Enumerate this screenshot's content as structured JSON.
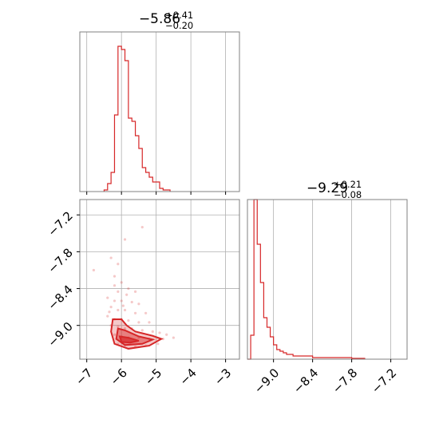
{
  "colors": {
    "series": "#d62728",
    "grid": "#b0b0b0",
    "axes": "#808080"
  },
  "chart_data": [
    {
      "type": "histogram",
      "panel": "top-left",
      "title_main": "−5.86",
      "title_sup": "+0.41",
      "title_sub": "−0.20",
      "xlim": [
        -7.2,
        -2.6
      ],
      "ylim": [
        0,
        1.0
      ],
      "xticks": [
        -7,
        -6,
        -5,
        -4,
        -3
      ],
      "xtick_labels": [],
      "yticks": [],
      "grid": true,
      "bin_edges": [
        -6.5,
        -6.4,
        -6.3,
        -6.2,
        -6.1,
        -6.0,
        -5.9,
        -5.8,
        -5.7,
        -5.6,
        -5.5,
        -5.4,
        -5.3,
        -5.2,
        -5.1,
        -5.0,
        -4.9,
        -4.8,
        -4.7,
        -4.6
      ],
      "counts": [
        0.01,
        0.05,
        0.12,
        0.48,
        0.91,
        0.89,
        0.82,
        0.46,
        0.44,
        0.35,
        0.27,
        0.15,
        0.12,
        0.09,
        0.06,
        0.06,
        0.02,
        0.01,
        0.01
      ]
    },
    {
      "type": "histogram",
      "panel": "bottom-right",
      "title_main": "−9.29",
      "title_sup": "+0.21",
      "title_sub": "−0.08",
      "xlim": [
        -9.4,
        -6.95
      ],
      "ylim": [
        0,
        1.0
      ],
      "xticks": [
        -9.0,
        -8.4,
        -7.8,
        -7.2
      ],
      "xtick_labels": [
        "−9.0",
        "−8.4",
        "−7.8",
        "−7.2"
      ],
      "yticks": [],
      "grid": true,
      "bin_edges": [
        -9.4,
        -9.35,
        -9.3,
        -9.25,
        -9.2,
        -9.15,
        -9.1,
        -9.05,
        -9.0,
        -8.95,
        -8.9,
        -8.85,
        -8.8,
        -8.75,
        -8.7,
        -8.6,
        -8.4,
        -8.2,
        -8.0,
        -7.8,
        -7.6
      ],
      "counts": [
        0.0,
        0.15,
        1.0,
        0.72,
        0.48,
        0.26,
        0.2,
        0.14,
        0.09,
        0.06,
        0.05,
        0.04,
        0.03,
        0.03,
        0.02,
        0.02,
        0.01,
        0.01,
        0.01,
        0.005
      ]
    },
    {
      "type": "scatter",
      "panel": "bottom-left",
      "xlim": [
        -7.2,
        -2.6
      ],
      "ylim": [
        -9.55,
        -6.95
      ],
      "xticks": [
        -7,
        -6,
        -5,
        -4,
        -3
      ],
      "xtick_labels": [
        "−7",
        "−6",
        "−5",
        "−4",
        "−3"
      ],
      "yticks": [
        -7.2,
        -7.8,
        -8.4,
        -9.0
      ],
      "ytick_labels": [
        "−7.2",
        "−7.8",
        "−8.4",
        "−9.0"
      ],
      "grid": true,
      "points": [
        [
          -6.3,
          -7.9
        ],
        [
          -6.1,
          -8.0
        ],
        [
          -5.9,
          -7.6
        ],
        [
          -5.4,
          -7.4
        ],
        [
          -6.8,
          -8.1
        ],
        [
          -6.2,
          -8.2
        ],
        [
          -6.0,
          -8.3
        ],
        [
          -6.1,
          -8.45
        ],
        [
          -5.8,
          -8.4
        ],
        [
          -5.6,
          -8.45
        ],
        [
          -6.4,
          -8.55
        ],
        [
          -6.2,
          -8.6
        ],
        [
          -6.0,
          -8.6
        ],
        [
          -5.7,
          -8.62
        ],
        [
          -5.5,
          -8.65
        ],
        [
          -6.3,
          -8.7
        ],
        [
          -6.1,
          -8.75
        ],
        [
          -5.9,
          -8.75
        ],
        [
          -5.6,
          -8.8
        ],
        [
          -5.3,
          -8.8
        ],
        [
          -6.4,
          -8.85
        ],
        [
          -6.2,
          -8.9
        ],
        [
          -6.0,
          -8.9
        ],
        [
          -5.8,
          -8.92
        ],
        [
          -5.5,
          -8.95
        ],
        [
          -5.2,
          -8.95
        ],
        [
          -6.3,
          -9.0
        ],
        [
          -6.1,
          -9.02
        ],
        [
          -5.9,
          -9.05
        ],
        [
          -5.7,
          -9.05
        ],
        [
          -5.4,
          -9.08
        ],
        [
          -5.1,
          -9.1
        ],
        [
          -4.9,
          -9.12
        ],
        [
          -4.7,
          -9.15
        ],
        [
          -6.2,
          -9.15
        ],
        [
          -6.0,
          -9.18
        ],
        [
          -5.8,
          -9.2
        ],
        [
          -5.5,
          -9.2
        ],
        [
          -5.2,
          -9.22
        ],
        [
          -4.8,
          -9.22
        ],
        [
          -4.5,
          -9.2
        ],
        [
          -6.1,
          -9.3
        ],
        [
          -5.9,
          -9.32
        ],
        [
          -5.6,
          -9.35
        ],
        [
          -5.3,
          -9.33
        ],
        [
          -4.95,
          -9.3
        ],
        [
          -6.2,
          -8.35
        ],
        [
          -5.85,
          -8.5
        ],
        [
          -6.35,
          -8.78
        ],
        [
          -5.95,
          -8.68
        ]
      ],
      "contours": [
        [
          [
            -6.25,
            -8.9
          ],
          [
            -6.0,
            -8.9
          ],
          [
            -5.85,
            -9.0
          ],
          [
            -5.6,
            -9.1
          ],
          [
            -5.1,
            -9.17
          ],
          [
            -4.85,
            -9.22
          ],
          [
            -5.2,
            -9.33
          ],
          [
            -5.8,
            -9.38
          ],
          [
            -6.2,
            -9.3
          ],
          [
            -6.3,
            -9.1
          ],
          [
            -6.25,
            -8.9
          ]
        ],
        [
          [
            -6.1,
            -9.05
          ],
          [
            -5.9,
            -9.08
          ],
          [
            -5.5,
            -9.18
          ],
          [
            -5.1,
            -9.23
          ],
          [
            -5.4,
            -9.3
          ],
          [
            -5.9,
            -9.32
          ],
          [
            -6.15,
            -9.22
          ],
          [
            -6.1,
            -9.05
          ]
        ],
        [
          [
            -6.05,
            -9.18
          ],
          [
            -5.8,
            -9.2
          ],
          [
            -5.5,
            -9.25
          ],
          [
            -5.75,
            -9.28
          ],
          [
            -6.0,
            -9.27
          ],
          [
            -6.05,
            -9.18
          ]
        ]
      ]
    }
  ]
}
